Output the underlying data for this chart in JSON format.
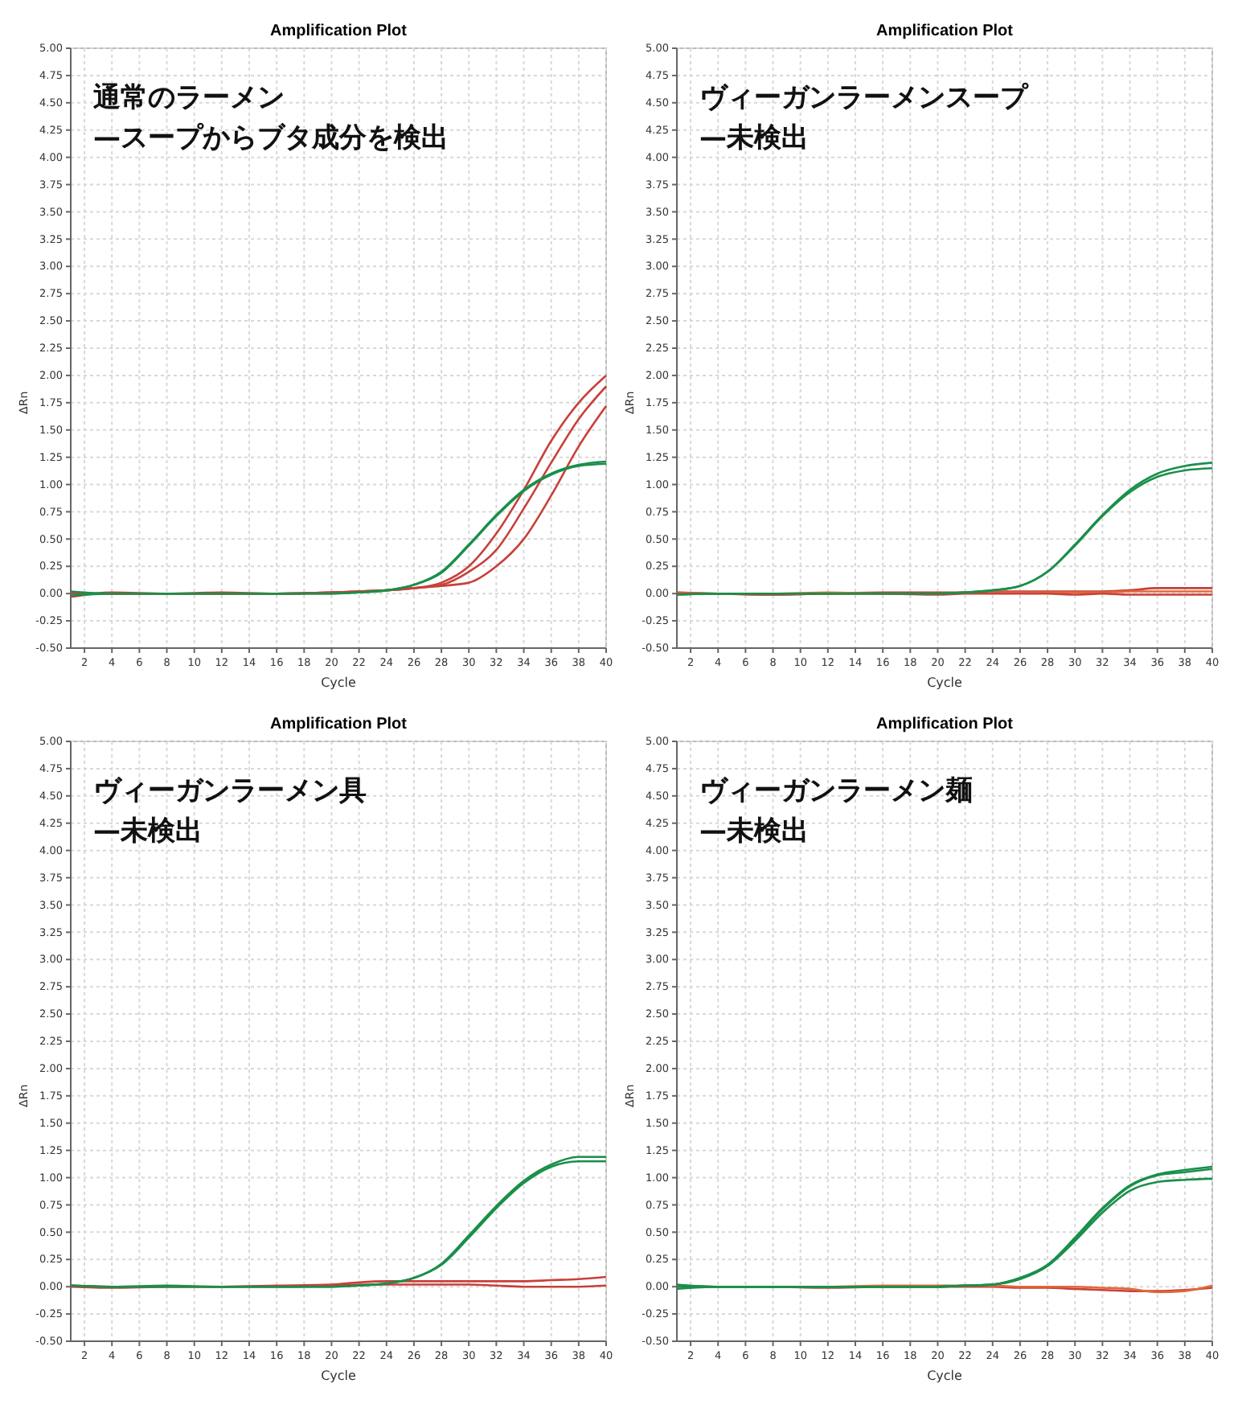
{
  "chart_data": [
    {
      "type": "line",
      "title": "Amplification Plot",
      "xlabel": "Cycle",
      "ylabel": "ΔRn",
      "annotations": [
        "通常のラーメン",
        "—スープからブタ成分を検出"
      ],
      "xlim": [
        1,
        40
      ],
      "ylim": [
        -0.5,
        5
      ],
      "xticks": [
        2,
        4,
        6,
        8,
        10,
        12,
        14,
        16,
        18,
        20,
        22,
        24,
        26,
        28,
        30,
        32,
        34,
        36,
        38,
        40
      ],
      "yticks": [
        {
          "value": -0.5,
          "label": "-0.50"
        },
        {
          "value": -0.25,
          "label": "-0.25"
        },
        {
          "value": 0,
          "label": "0.00"
        },
        {
          "value": 0.25,
          "label": "0.25"
        },
        {
          "value": 0.5,
          "label": "0.50"
        },
        {
          "value": 0.75,
          "label": "0.75"
        },
        {
          "value": 1,
          "label": "1.00"
        },
        {
          "value": 1.25,
          "label": "1.25"
        },
        {
          "value": 1.5,
          "label": "1.50"
        },
        {
          "value": 1.75,
          "label": "1.75"
        },
        {
          "value": 2,
          "label": "2.00"
        },
        {
          "value": 2.25,
          "label": "2.25"
        },
        {
          "value": 2.5,
          "label": "2.50"
        },
        {
          "value": 2.75,
          "label": "2.75"
        },
        {
          "value": 3,
          "label": "3.00"
        },
        {
          "value": 3.25,
          "label": "3.25"
        },
        {
          "value": 3.5,
          "label": "3.50"
        },
        {
          "value": 3.75,
          "label": "3.75"
        },
        {
          "value": 4,
          "label": "4.00"
        },
        {
          "value": 4.25,
          "label": "4.25"
        },
        {
          "value": 4.5,
          "label": "4.50"
        },
        {
          "value": 4.75,
          "label": "4.75"
        },
        {
          "value": 5,
          "label": "5.00"
        }
      ],
      "grid": true,
      "x": [
        1,
        4,
        8,
        12,
        16,
        20,
        22,
        24,
        26,
        28,
        30,
        32,
        34,
        36,
        38,
        40
      ],
      "series": [
        {
          "color": "#c8403a",
          "values": [
            -0.03,
            0.01,
            0,
            0.01,
            0,
            0.01,
            0.02,
            0.03,
            0.05,
            0.1,
            0.25,
            0.55,
            0.95,
            1.4,
            1.75,
            2.0
          ]
        },
        {
          "color": "#c8403a",
          "values": [
            0,
            0,
            0,
            0,
            0,
            0.01,
            0.02,
            0.03,
            0.05,
            0.08,
            0.2,
            0.4,
            0.78,
            1.2,
            1.6,
            1.9
          ]
        },
        {
          "color": "#c8403a",
          "values": [
            0,
            0,
            0,
            0,
            0,
            0.01,
            0.02,
            0.03,
            0.05,
            0.07,
            0.1,
            0.25,
            0.5,
            0.9,
            1.35,
            1.72
          ]
        },
        {
          "color": "#1a8f4a",
          "values": [
            -0.02,
            0,
            0,
            0,
            0,
            0,
            0.01,
            0.03,
            0.08,
            0.2,
            0.45,
            0.72,
            0.95,
            1.1,
            1.18,
            1.21
          ]
        },
        {
          "color": "#1a8f4a",
          "values": [
            0.02,
            0,
            0,
            0,
            0,
            0,
            0.01,
            0.03,
            0.08,
            0.19,
            0.44,
            0.71,
            0.94,
            1.09,
            1.17,
            1.19
          ]
        }
      ]
    },
    {
      "type": "line",
      "title": "Amplification Plot",
      "xlabel": "Cycle",
      "ylabel": "ΔRn",
      "annotations": [
        "ヴィーガンラーメンスープ",
        "—未検出"
      ],
      "xlim": [
        1,
        40
      ],
      "ylim": [
        -0.5,
        5
      ],
      "xticks": [
        2,
        4,
        6,
        8,
        10,
        12,
        14,
        16,
        18,
        20,
        22,
        24,
        26,
        28,
        30,
        32,
        34,
        36,
        38,
        40
      ],
      "yticks": [
        {
          "value": -0.5,
          "label": "-0.50"
        },
        {
          "value": -0.25,
          "label": "-0.25"
        },
        {
          "value": 0,
          "label": "0.00"
        },
        {
          "value": 0.25,
          "label": "0.25"
        },
        {
          "value": 0.5,
          "label": "0.50"
        },
        {
          "value": 0.75,
          "label": "0.75"
        },
        {
          "value": 1,
          "label": "1.00"
        },
        {
          "value": 1.25,
          "label": "1.25"
        },
        {
          "value": 1.5,
          "label": "1.50"
        },
        {
          "value": 1.75,
          "label": "1.75"
        },
        {
          "value": 2,
          "label": "2.00"
        },
        {
          "value": 2.25,
          "label": "2.25"
        },
        {
          "value": 2.5,
          "label": "2.50"
        },
        {
          "value": 2.75,
          "label": "2.75"
        },
        {
          "value": 3,
          "label": "3.00"
        },
        {
          "value": 3.25,
          "label": "3.25"
        },
        {
          "value": 3.5,
          "label": "3.50"
        },
        {
          "value": 3.75,
          "label": "3.75"
        },
        {
          "value": 4,
          "label": "4.00"
        },
        {
          "value": 4.25,
          "label": "4.25"
        },
        {
          "value": 4.5,
          "label": "4.50"
        },
        {
          "value": 4.75,
          "label": "4.75"
        },
        {
          "value": 5,
          "label": "5.00"
        }
      ],
      "grid": true,
      "x": [
        1,
        4,
        8,
        12,
        16,
        20,
        22,
        24,
        26,
        28,
        30,
        32,
        34,
        36,
        38,
        40
      ],
      "series": [
        {
          "color": "#c8403a",
          "values": [
            0.01,
            0,
            -0.01,
            0,
            0.01,
            0.01,
            0.01,
            0.02,
            0.02,
            0.02,
            0.02,
            0.02,
            0.03,
            0.05,
            0.05,
            0.05
          ]
        },
        {
          "color": "#e06a3a",
          "values": [
            0.01,
            0,
            0,
            0.01,
            0,
            0,
            0.01,
            0.01,
            0.01,
            0.01,
            0.01,
            0.01,
            0.02,
            0.02,
            0.02,
            0.02
          ]
        },
        {
          "color": "#c8403a",
          "values": [
            0,
            0,
            -0.01,
            0,
            0,
            -0.01,
            0,
            0,
            0,
            0,
            -0.01,
            0,
            -0.01,
            -0.01,
            -0.01,
            -0.01
          ]
        },
        {
          "color": "#1a8f4a",
          "values": [
            -0.01,
            0,
            0,
            0,
            0,
            0,
            0.01,
            0.03,
            0.07,
            0.2,
            0.45,
            0.72,
            0.95,
            1.1,
            1.17,
            1.2
          ]
        },
        {
          "color": "#1a8f4a",
          "values": [
            -0.01,
            0,
            0,
            0,
            0,
            0,
            0.01,
            0.03,
            0.07,
            0.2,
            0.44,
            0.71,
            0.93,
            1.07,
            1.13,
            1.15
          ]
        }
      ]
    },
    {
      "type": "line",
      "title": "Amplification Plot",
      "xlabel": "Cycle",
      "ylabel": "ΔRn",
      "annotations": [
        "ヴィーガンラーメン具",
        "—未検出"
      ],
      "xlim": [
        1,
        40
      ],
      "ylim": [
        -0.5,
        5
      ],
      "xticks": [
        2,
        4,
        6,
        8,
        10,
        12,
        14,
        16,
        18,
        20,
        22,
        24,
        26,
        28,
        30,
        32,
        34,
        36,
        38,
        40
      ],
      "yticks": [
        {
          "value": -0.5,
          "label": "-0.50"
        },
        {
          "value": -0.25,
          "label": "-0.25"
        },
        {
          "value": 0,
          "label": "0.00"
        },
        {
          "value": 0.25,
          "label": "0.25"
        },
        {
          "value": 0.5,
          "label": "0.50"
        },
        {
          "value": 0.75,
          "label": "0.75"
        },
        {
          "value": 1,
          "label": "1.00"
        },
        {
          "value": 1.25,
          "label": "1.25"
        },
        {
          "value": 1.5,
          "label": "1.50"
        },
        {
          "value": 1.75,
          "label": "1.75"
        },
        {
          "value": 2,
          "label": "2.00"
        },
        {
          "value": 2.25,
          "label": "2.25"
        },
        {
          "value": 2.5,
          "label": "2.50"
        },
        {
          "value": 2.75,
          "label": "2.75"
        },
        {
          "value": 3,
          "label": "3.00"
        },
        {
          "value": 3.25,
          "label": "3.25"
        },
        {
          "value": 3.5,
          "label": "3.50"
        },
        {
          "value": 3.75,
          "label": "3.75"
        },
        {
          "value": 4,
          "label": "4.00"
        },
        {
          "value": 4.25,
          "label": "4.25"
        },
        {
          "value": 4.5,
          "label": "4.50"
        },
        {
          "value": 4.75,
          "label": "4.75"
        },
        {
          "value": 5,
          "label": "5.00"
        }
      ],
      "grid": true,
      "x": [
        1,
        4,
        8,
        12,
        16,
        20,
        22,
        24,
        26,
        28,
        30,
        32,
        34,
        36,
        38,
        40
      ],
      "series": [
        {
          "color": "#c8403a",
          "values": [
            0.01,
            0,
            0,
            0,
            0.01,
            0.02,
            0.04,
            0.05,
            0.05,
            0.05,
            0.05,
            0.05,
            0.05,
            0.06,
            0.07,
            0.09
          ]
        },
        {
          "color": "#c8403a",
          "values": [
            0,
            -0.01,
            0,
            0,
            0,
            0.01,
            0.02,
            0.02,
            0.02,
            0.02,
            0.02,
            0.01,
            0,
            0,
            0,
            0.01
          ]
        },
        {
          "color": "#1a8f4a",
          "values": [
            0.01,
            0,
            0.01,
            0,
            0,
            0,
            0.01,
            0.03,
            0.08,
            0.21,
            0.47,
            0.74,
            0.97,
            1.12,
            1.19,
            1.19
          ]
        },
        {
          "color": "#1a8f4a",
          "values": [
            0.01,
            0,
            0,
            0,
            0,
            0,
            0.01,
            0.03,
            0.08,
            0.2,
            0.45,
            0.72,
            0.95,
            1.1,
            1.15,
            1.15
          ]
        }
      ]
    },
    {
      "type": "line",
      "title": "Amplification Plot",
      "xlabel": "Cycle",
      "ylabel": "ΔRn",
      "annotations": [
        "ヴィーガンラーメン麺",
        "—未検出"
      ],
      "xlim": [
        1,
        40
      ],
      "ylim": [
        -0.5,
        5
      ],
      "xticks": [
        2,
        4,
        6,
        8,
        10,
        12,
        14,
        16,
        18,
        20,
        22,
        24,
        26,
        28,
        30,
        32,
        34,
        36,
        38,
        40
      ],
      "yticks": [
        {
          "value": -0.5,
          "label": "-0.50"
        },
        {
          "value": -0.25,
          "label": "-0.25"
        },
        {
          "value": 0,
          "label": "0.00"
        },
        {
          "value": 0.25,
          "label": "0.25"
        },
        {
          "value": 0.5,
          "label": "0.50"
        },
        {
          "value": 0.75,
          "label": "0.75"
        },
        {
          "value": 1,
          "label": "1.00"
        },
        {
          "value": 1.25,
          "label": "1.25"
        },
        {
          "value": 1.5,
          "label": "1.50"
        },
        {
          "value": 1.75,
          "label": "1.75"
        },
        {
          "value": 2,
          "label": "2.00"
        },
        {
          "value": 2.25,
          "label": "2.25"
        },
        {
          "value": 2.5,
          "label": "2.50"
        },
        {
          "value": 2.75,
          "label": "2.75"
        },
        {
          "value": 3,
          "label": "3.00"
        },
        {
          "value": 3.25,
          "label": "3.25"
        },
        {
          "value": 3.5,
          "label": "3.50"
        },
        {
          "value": 3.75,
          "label": "3.75"
        },
        {
          "value": 4,
          "label": "4.00"
        },
        {
          "value": 4.25,
          "label": "4.25"
        },
        {
          "value": 4.5,
          "label": "4.50"
        },
        {
          "value": 4.75,
          "label": "4.75"
        },
        {
          "value": 5,
          "label": "5.00"
        }
      ],
      "grid": true,
      "x": [
        1,
        4,
        8,
        12,
        16,
        20,
        22,
        24,
        26,
        28,
        30,
        32,
        34,
        36,
        38,
        40
      ],
      "series": [
        {
          "color": "#c8403a",
          "values": [
            0.01,
            0,
            0,
            -0.01,
            0,
            0,
            0,
            0,
            -0.01,
            -0.01,
            -0.02,
            -0.03,
            -0.04,
            -0.04,
            -0.03,
            -0.01
          ]
        },
        {
          "color": "#e06a3a",
          "values": [
            0.01,
            0,
            0,
            0,
            0.01,
            0.01,
            0.01,
            0.01,
            0,
            0,
            0,
            -0.01,
            -0.02,
            -0.05,
            -0.04,
            0.01
          ]
        },
        {
          "color": "#1a8f4a",
          "values": [
            -0.02,
            0,
            0,
            0,
            0,
            0,
            0.01,
            0.02,
            0.08,
            0.2,
            0.45,
            0.72,
            0.93,
            1.03,
            1.07,
            1.1
          ]
        },
        {
          "color": "#1a8f4a",
          "values": [
            0.02,
            0,
            0,
            0,
            0,
            0,
            0.01,
            0.02,
            0.08,
            0.2,
            0.44,
            0.71,
            0.92,
            1.02,
            1.05,
            1.08
          ]
        },
        {
          "color": "#1a8f4a",
          "values": [
            0,
            0,
            0,
            0,
            0,
            0,
            0.01,
            0.02,
            0.07,
            0.19,
            0.42,
            0.68,
            0.88,
            0.96,
            0.98,
            0.99
          ]
        }
      ]
    }
  ]
}
